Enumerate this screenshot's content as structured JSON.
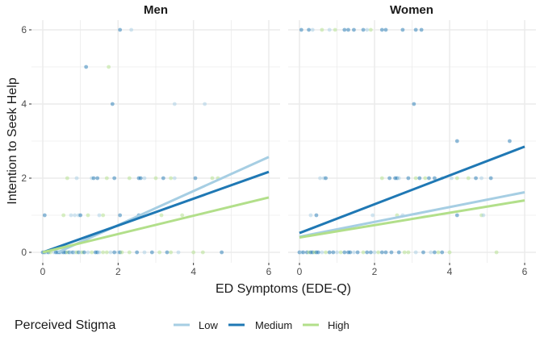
{
  "chart_data": {
    "type": "scatter",
    "xlabel": "ED Symptoms (EDE-Q)",
    "ylabel": "Intention to Seek Help",
    "xlim": [
      0,
      6
    ],
    "ylim": [
      0,
      6
    ],
    "x_ticks": [
      "0",
      "2",
      "4",
      "6"
    ],
    "y_ticks": [
      "0",
      "2",
      "4",
      "6"
    ],
    "grid": true,
    "legend": {
      "title": "Perceived Stigma",
      "placement": "bottom",
      "entries": [
        {
          "key": "L",
          "label": "Low",
          "color": "#a6cee3"
        },
        {
          "key": "M",
          "label": "Medium",
          "color": "#1f78b4"
        },
        {
          "key": "H",
          "label": "High",
          "color": "#b2df8a"
        }
      ]
    },
    "panels": [
      {
        "title": "Men",
        "lines": [
          {
            "key": "L",
            "x": [
              0.4,
              6
            ],
            "y": [
              0,
              2.57
            ]
          },
          {
            "key": "M",
            "x": [
              0,
              6
            ],
            "y": [
              0,
              2.17
            ]
          },
          {
            "key": "H",
            "x": [
              0,
              6
            ],
            "y": [
              0,
              1.48
            ]
          }
        ],
        "points": [
          [
            2.05,
            6,
            "M"
          ],
          [
            2.35,
            6,
            "L"
          ],
          [
            1.15,
            5,
            "M"
          ],
          [
            1.75,
            5,
            "H"
          ],
          [
            1.85,
            4,
            "M"
          ],
          [
            3.5,
            4,
            "L"
          ],
          [
            4.3,
            4,
            "L"
          ],
          [
            0.65,
            2,
            "H"
          ],
          [
            0.9,
            2,
            "L"
          ],
          [
            1.3,
            2,
            "L"
          ],
          [
            1.35,
            2,
            "M"
          ],
          [
            1.45,
            2,
            "M"
          ],
          [
            1.7,
            2,
            "H"
          ],
          [
            1.9,
            2,
            "M"
          ],
          [
            2.3,
            2,
            "H"
          ],
          [
            2.55,
            2,
            "M"
          ],
          [
            2.6,
            2,
            "M"
          ],
          [
            2.7,
            2,
            "L"
          ],
          [
            3.0,
            2,
            "H"
          ],
          [
            3.2,
            2,
            "M"
          ],
          [
            3.4,
            2,
            "H"
          ],
          [
            3.5,
            2,
            "L"
          ],
          [
            4.05,
            2,
            "M"
          ],
          [
            4.5,
            2,
            "H"
          ],
          [
            4.65,
            2,
            "H"
          ],
          [
            0.05,
            1,
            "M"
          ],
          [
            0.55,
            1,
            "H"
          ],
          [
            0.75,
            1,
            "L"
          ],
          [
            0.85,
            1,
            "L"
          ],
          [
            0.95,
            1,
            "L"
          ],
          [
            1.0,
            1,
            "M"
          ],
          [
            1.2,
            1,
            "H"
          ],
          [
            1.5,
            1,
            "L"
          ],
          [
            1.6,
            1,
            "H"
          ],
          [
            2.05,
            1,
            "M"
          ],
          [
            2.55,
            1,
            "M"
          ],
          [
            3.15,
            1,
            "H"
          ],
          [
            3.7,
            1,
            "H"
          ],
          [
            0.0,
            0,
            "M"
          ],
          [
            0.05,
            0,
            "M"
          ],
          [
            0.1,
            0,
            "L"
          ],
          [
            0.15,
            0,
            "M"
          ],
          [
            0.2,
            0,
            "H"
          ],
          [
            0.3,
            0,
            "L"
          ],
          [
            0.35,
            0,
            "M"
          ],
          [
            0.4,
            0,
            "M"
          ],
          [
            0.45,
            0,
            "M"
          ],
          [
            0.5,
            0,
            "L"
          ],
          [
            0.55,
            0,
            "M"
          ],
          [
            0.6,
            0,
            "M"
          ],
          [
            0.65,
            0,
            "H"
          ],
          [
            0.7,
            0,
            "M"
          ],
          [
            0.75,
            0,
            "L"
          ],
          [
            0.8,
            0,
            "M"
          ],
          [
            0.85,
            0,
            "L"
          ],
          [
            0.9,
            0,
            "H"
          ],
          [
            0.95,
            0,
            "M"
          ],
          [
            1.0,
            0,
            "L"
          ],
          [
            1.05,
            0,
            "H"
          ],
          [
            1.1,
            0,
            "M"
          ],
          [
            1.2,
            0,
            "L"
          ],
          [
            1.3,
            0,
            "H"
          ],
          [
            1.4,
            0,
            "M"
          ],
          [
            1.45,
            0,
            "M"
          ],
          [
            1.5,
            0,
            "L"
          ],
          [
            1.6,
            0,
            "H"
          ],
          [
            1.7,
            0,
            "H"
          ],
          [
            1.8,
            0,
            "L"
          ],
          [
            1.9,
            0,
            "M"
          ],
          [
            2.0,
            0,
            "L"
          ],
          [
            2.05,
            0,
            "M"
          ],
          [
            2.1,
            0,
            "H"
          ],
          [
            2.3,
            0,
            "H"
          ],
          [
            2.5,
            0,
            "M"
          ],
          [
            2.7,
            0,
            "L"
          ],
          [
            2.9,
            0,
            "M"
          ],
          [
            3.1,
            0,
            "H"
          ],
          [
            3.3,
            0,
            "M"
          ],
          [
            3.4,
            0,
            "H"
          ],
          [
            3.6,
            0,
            "L"
          ],
          [
            4.0,
            0,
            "H"
          ],
          [
            4.25,
            0,
            "H"
          ],
          [
            4.75,
            0,
            "M"
          ]
        ]
      },
      {
        "title": "Women",
        "lines": [
          {
            "key": "L",
            "x": [
              0,
              6
            ],
            "y": [
              0.42,
              1.62
            ]
          },
          {
            "key": "M",
            "x": [
              0,
              6
            ],
            "y": [
              0.52,
              2.85
            ]
          },
          {
            "key": "H",
            "x": [
              0,
              6
            ],
            "y": [
              0.4,
              1.4
            ]
          }
        ],
        "points": [
          [
            0.05,
            6,
            "M"
          ],
          [
            0.25,
            6,
            "M"
          ],
          [
            0.35,
            6,
            "L"
          ],
          [
            0.6,
            6,
            "H"
          ],
          [
            0.8,
            6,
            "L"
          ],
          [
            0.95,
            6,
            "H"
          ],
          [
            1.2,
            6,
            "M"
          ],
          [
            1.3,
            6,
            "M"
          ],
          [
            1.45,
            6,
            "M"
          ],
          [
            1.7,
            6,
            "M"
          ],
          [
            1.8,
            6,
            "L"
          ],
          [
            1.9,
            6,
            "H"
          ],
          [
            2.2,
            6,
            "M"
          ],
          [
            2.3,
            6,
            "M"
          ],
          [
            2.75,
            6,
            "M"
          ],
          [
            3.1,
            6,
            "M"
          ],
          [
            3.25,
            6,
            "M"
          ],
          [
            3.05,
            4,
            "M"
          ],
          [
            4.2,
            3,
            "M"
          ],
          [
            5.6,
            3,
            "M"
          ],
          [
            0.55,
            2,
            "L"
          ],
          [
            0.65,
            2,
            "L"
          ],
          [
            0.7,
            2,
            "M"
          ],
          [
            2.2,
            2,
            "H"
          ],
          [
            2.4,
            2,
            "M"
          ],
          [
            2.55,
            2,
            "M"
          ],
          [
            2.6,
            2,
            "M"
          ],
          [
            2.65,
            2,
            "L"
          ],
          [
            2.9,
            2,
            "M"
          ],
          [
            3.1,
            2,
            "H"
          ],
          [
            3.2,
            2,
            "M"
          ],
          [
            3.35,
            2,
            "H"
          ],
          [
            3.45,
            2,
            "M"
          ],
          [
            3.6,
            2,
            "M"
          ],
          [
            3.8,
            2,
            "L"
          ],
          [
            4.05,
            2,
            "L"
          ],
          [
            4.2,
            2,
            "H"
          ],
          [
            4.5,
            2,
            "H"
          ],
          [
            4.7,
            2,
            "M"
          ],
          [
            4.85,
            2,
            "L"
          ],
          [
            5.1,
            2,
            "M"
          ],
          [
            0.3,
            1,
            "L"
          ],
          [
            0.45,
            1,
            "M"
          ],
          [
            1.95,
            1,
            "L"
          ],
          [
            2.6,
            1,
            "H"
          ],
          [
            2.75,
            1,
            "L"
          ],
          [
            4.2,
            1,
            "M"
          ],
          [
            4.85,
            1,
            "H"
          ],
          [
            4.9,
            1,
            "L"
          ],
          [
            0.0,
            0,
            "M"
          ],
          [
            0.05,
            0,
            "L"
          ],
          [
            0.1,
            0,
            "M"
          ],
          [
            0.2,
            0,
            "M"
          ],
          [
            0.25,
            0,
            "H"
          ],
          [
            0.3,
            0,
            "M"
          ],
          [
            0.35,
            0,
            "M"
          ],
          [
            0.4,
            0,
            "H"
          ],
          [
            0.45,
            0,
            "M"
          ],
          [
            0.5,
            0,
            "M"
          ],
          [
            0.6,
            0,
            "L"
          ],
          [
            0.7,
            0,
            "H"
          ],
          [
            0.8,
            0,
            "M"
          ],
          [
            0.9,
            0,
            "M"
          ],
          [
            1.0,
            0,
            "L"
          ],
          [
            1.1,
            0,
            "H"
          ],
          [
            1.2,
            0,
            "M"
          ],
          [
            1.3,
            0,
            "M"
          ],
          [
            1.35,
            0,
            "M"
          ],
          [
            1.45,
            0,
            "L"
          ],
          [
            1.55,
            0,
            "M"
          ],
          [
            1.7,
            0,
            "H"
          ],
          [
            1.8,
            0,
            "M"
          ],
          [
            1.9,
            0,
            "M"
          ],
          [
            2.0,
            0,
            "L"
          ],
          [
            2.1,
            0,
            "H"
          ],
          [
            2.2,
            0,
            "M"
          ],
          [
            2.3,
            0,
            "M"
          ],
          [
            2.45,
            0,
            "M"
          ],
          [
            2.65,
            0,
            "M"
          ],
          [
            2.8,
            0,
            "H"
          ],
          [
            2.9,
            0,
            "H"
          ],
          [
            3.1,
            0,
            "L"
          ],
          [
            3.3,
            0,
            "M"
          ],
          [
            3.5,
            0,
            "L"
          ],
          [
            3.6,
            0,
            "M"
          ],
          [
            3.7,
            0,
            "H"
          ],
          [
            3.8,
            0,
            "M"
          ],
          [
            4.0,
            0,
            "H"
          ],
          [
            5.25,
            0,
            "H"
          ]
        ]
      }
    ]
  }
}
